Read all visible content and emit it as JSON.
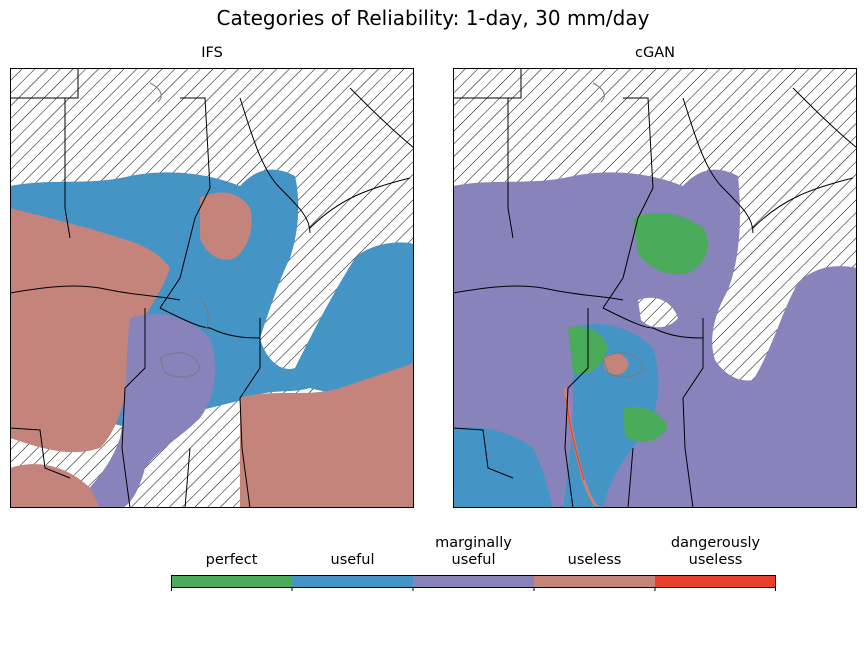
{
  "title": "Categories of Reliability: 1-day, 30 mm/day",
  "panels": [
    {
      "title": "IFS"
    },
    {
      "title": "cGAN"
    }
  ],
  "colors": {
    "perfect": "#4aab5a",
    "useful": "#4495c6",
    "marginally_useful": "#8983bb",
    "useless": "#c4847b",
    "dangerously_useless": "#e8402e",
    "hatch": "#000000"
  },
  "chart_data": [
    {
      "type": "heatmap",
      "title": "IFS",
      "categories": [
        "perfect",
        "useful",
        "marginally useful",
        "useless",
        "dangerously useless"
      ],
      "dominant_categories": [
        "useful",
        "useless",
        "marginally useful"
      ],
      "hatched_region": "no data (desert / Arabian Peninsula)"
    },
    {
      "type": "heatmap",
      "title": "cGAN",
      "categories": [
        "perfect",
        "useful",
        "marginally useful",
        "useless",
        "dangerously useless"
      ],
      "dominant_categories": [
        "marginally useful",
        "useful",
        "perfect"
      ],
      "hatched_region": "no data (desert / Arabian Peninsula)"
    }
  ],
  "colorbar": {
    "labels": [
      {
        "line1": "",
        "line2": "perfect"
      },
      {
        "line1": "",
        "line2": "useful"
      },
      {
        "line1": "marginally",
        "line2": "useful"
      },
      {
        "line1": "",
        "line2": "useless"
      },
      {
        "line1": "dangerously",
        "line2": "useless"
      }
    ]
  }
}
